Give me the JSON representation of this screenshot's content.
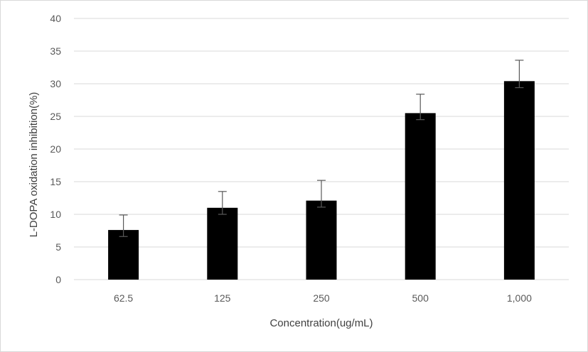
{
  "chart_data": {
    "type": "bar",
    "categories": [
      "62.5",
      "125",
      "250",
      "500",
      "1,000"
    ],
    "values": [
      7.6,
      11.0,
      12.1,
      25.5,
      30.4
    ],
    "error_upper": [
      2.3,
      2.5,
      3.1,
      2.9,
      3.2
    ],
    "error_lower": [
      1.0,
      1.0,
      1.0,
      1.0,
      1.0
    ],
    "xlabel": "Concentration(ug/mL)",
    "ylabel": "L-DOPA oxidation inhibition(%)",
    "ylim": [
      0,
      40
    ],
    "yticks": [
      0,
      5,
      10,
      15,
      20,
      25,
      30,
      35,
      40
    ],
    "grid": true,
    "colors": {
      "bar": "#000000",
      "grid": "#d9d9d9",
      "error_bar": "#595959"
    }
  }
}
